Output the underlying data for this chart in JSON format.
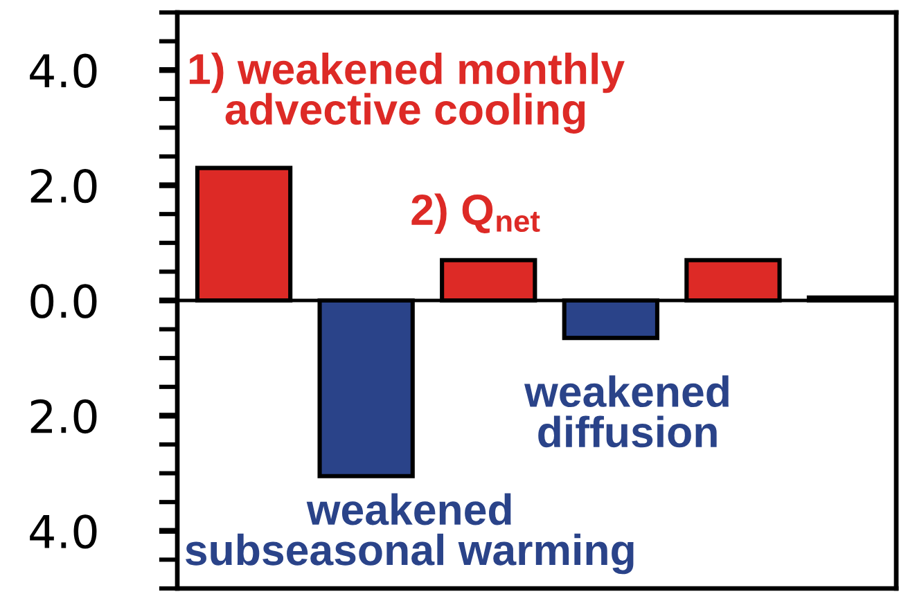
{
  "chart_data": {
    "type": "bar",
    "categories": [
      null,
      null,
      null,
      null,
      null,
      null
    ],
    "values": [
      2.3,
      -3.05,
      0.7,
      -0.65,
      0.7,
      0.05
    ],
    "colors": [
      "#dd2a26",
      "#2a4389",
      "#dd2a26",
      "#2a4389",
      "#dd2a26",
      "#dd2a26"
    ],
    "ylim": [
      -5,
      5
    ],
    "yticks": [
      {
        "value": -5,
        "label": null
      },
      {
        "value": -4.5,
        "label": null
      },
      {
        "value": -4,
        "label": "4.0"
      },
      {
        "value": -3.5,
        "label": null
      },
      {
        "value": -3,
        "label": null
      },
      {
        "value": -2.5,
        "label": null
      },
      {
        "value": -2,
        "label": "2.0"
      },
      {
        "value": -1.5,
        "label": null
      },
      {
        "value": -1,
        "label": null
      },
      {
        "value": -0.5,
        "label": null
      },
      {
        "value": 0,
        "label": "0.0"
      },
      {
        "value": 0.5,
        "label": null
      },
      {
        "value": 1,
        "label": null
      },
      {
        "value": 1.5,
        "label": null
      },
      {
        "value": 2,
        "label": "2.0"
      },
      {
        "value": 2.5,
        "label": null
      },
      {
        "value": 3,
        "label": null
      },
      {
        "value": 3.5,
        "label": null
      },
      {
        "value": 4,
        "label": "4.0"
      },
      {
        "value": 4.5,
        "label": null
      },
      {
        "value": 5,
        "label": null
      }
    ],
    "ref_lines": [
      {
        "axis": "y",
        "value": 0
      }
    ],
    "tick_labels": "y",
    "annotations": [
      "1) weakened monthly\nadvective cooling",
      "2) Q$_{net}$",
      "weakened\ndiffusion",
      "weakened\nsubseasonal warming"
    ]
  }
}
